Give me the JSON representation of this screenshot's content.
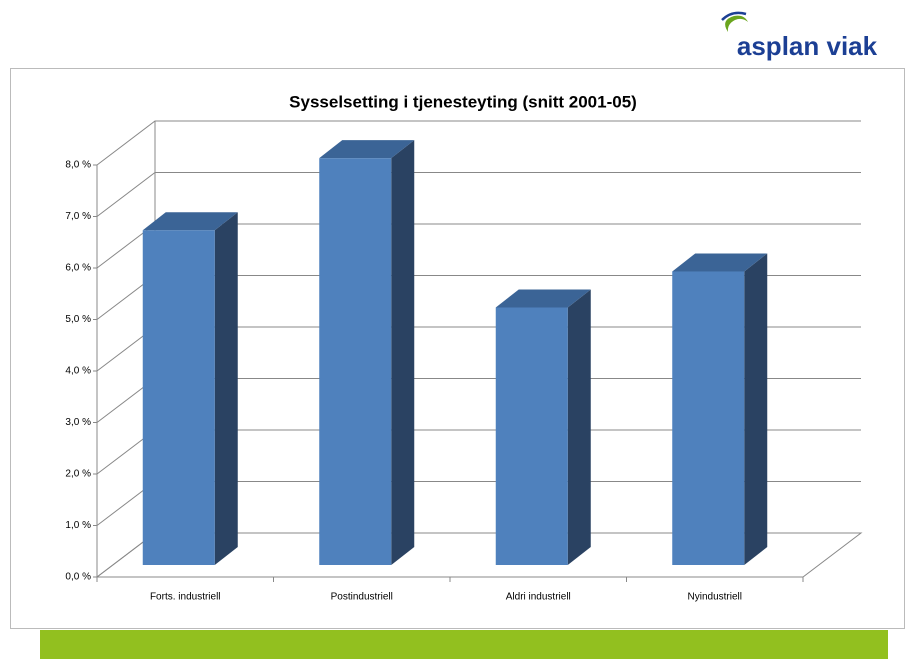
{
  "brand": "asplan viak",
  "chart_data": {
    "type": "bar3d",
    "title": "Sysselsetting i tjenesteyting (snitt 2001-05)",
    "categories": [
      "Forts. industriell",
      "Postindustriell",
      "Aldri industriell",
      "Nyindustriell"
    ],
    "values": [
      6.5,
      7.9,
      5.0,
      5.7
    ],
    "color": "#4f81bd",
    "side_color": "#2a4262",
    "top_color": "#3b6496",
    "ylim": [
      0,
      8
    ],
    "yticks": [
      {
        "value": 0,
        "label": "0,0 %"
      },
      {
        "value": 1,
        "label": "1,0 %"
      },
      {
        "value": 2,
        "label": "2,0 %"
      },
      {
        "value": 3,
        "label": "3,0 %"
      },
      {
        "value": 4,
        "label": "4,0 %"
      },
      {
        "value": 5,
        "label": "5,0 %"
      },
      {
        "value": 6,
        "label": "6,0 %"
      },
      {
        "value": 7,
        "label": "7,0 %"
      },
      {
        "value": 8,
        "label": "8,0 %"
      }
    ],
    "grid": true
  }
}
